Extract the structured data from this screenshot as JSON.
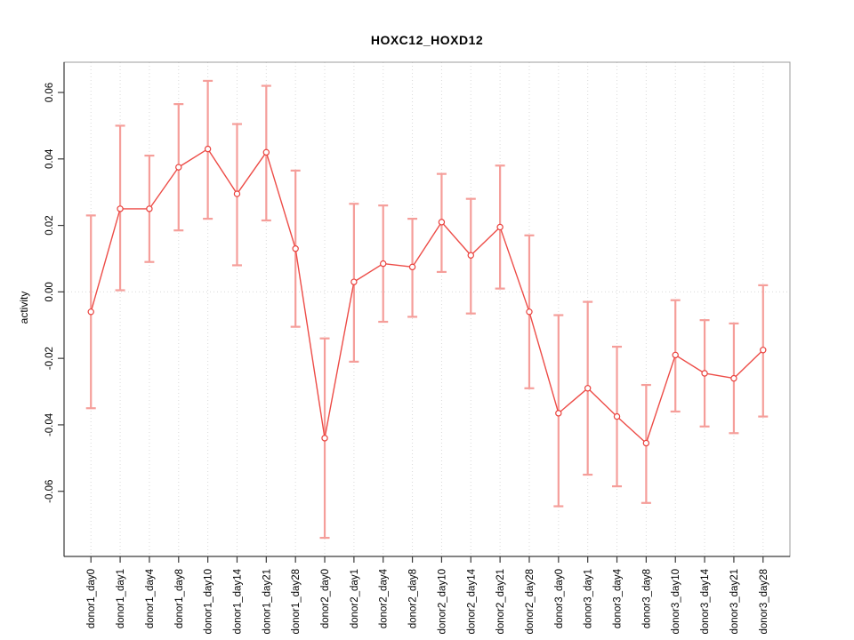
{
  "chart_data": {
    "type": "line",
    "title": "HOXC12_HOXD12",
    "xlabel": "",
    "ylabel": "activity",
    "categories": [
      "donor1_day0",
      "donor1_day1",
      "donor1_day4",
      "donor1_day8",
      "donor1_day10",
      "donor1_day14",
      "donor1_day21",
      "donor1_day28",
      "donor2_day0",
      "donor2_day1",
      "donor2_day4",
      "donor2_day8",
      "donor2_day10",
      "donor2_day14",
      "donor2_day21",
      "donor2_day28",
      "donor3_day0",
      "donor3_day1",
      "donor3_day4",
      "donor3_day8",
      "donor3_day10",
      "donor3_day14",
      "donor3_day21",
      "donor3_day28"
    ],
    "series": [
      {
        "name": "activity",
        "values": [
          -0.006,
          0.025,
          0.025,
          0.0375,
          0.043,
          0.0295,
          0.042,
          0.013,
          -0.044,
          0.003,
          0.0085,
          0.0075,
          0.021,
          0.011,
          0.0195,
          -0.006,
          -0.0365,
          -0.029,
          -0.0375,
          -0.0455,
          -0.019,
          -0.0245,
          -0.026,
          -0.0175
        ],
        "error_low": [
          -0.035,
          0.0005,
          0.009,
          0.0185,
          0.022,
          0.008,
          0.0215,
          -0.0105,
          -0.074,
          -0.021,
          -0.009,
          -0.0075,
          0.006,
          -0.0065,
          0.001,
          -0.029,
          -0.0645,
          -0.055,
          -0.0585,
          -0.0635,
          -0.036,
          -0.0405,
          -0.0425,
          -0.0375
        ],
        "error_high": [
          0.023,
          0.05,
          0.041,
          0.0565,
          0.0635,
          0.0505,
          0.062,
          0.0365,
          -0.014,
          0.0265,
          0.026,
          0.022,
          0.0355,
          0.028,
          0.038,
          0.017,
          -0.007,
          -0.003,
          -0.0165,
          -0.028,
          -0.0025,
          -0.0085,
          -0.0095,
          0.002
        ]
      }
    ],
    "yticks": [
      0.06,
      0.04,
      0.02,
      0.0,
      -0.02,
      -0.04,
      -0.06
    ],
    "ytick_labels": [
      "0.06",
      "0.04",
      "0.02",
      "0.00",
      "-0.02",
      "-0.04",
      "-0.06"
    ],
    "ylim": [
      -0.0796,
      0.0691
    ],
    "grid": "dotted vertical gridline at every category; dotted horizontal gridline at y=0 only",
    "legend_position": "none",
    "marker": "open-circle",
    "colors": {
      "line": "#ed4c47",
      "marker": "#e9413d",
      "error_bar": "#f59e9a",
      "grid": "#d9d9d9",
      "zero_line": "#d9d9d9",
      "box": "#9c9c9c",
      "axis": "#3a3a3a",
      "text": "#000000",
      "background": "#ffffff"
    }
  }
}
